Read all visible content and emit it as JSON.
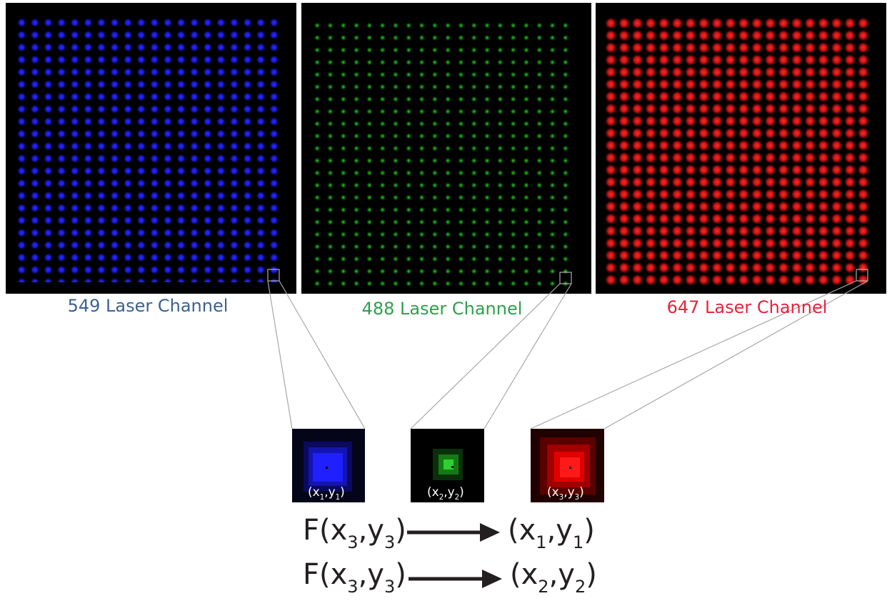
{
  "panels": [
    {
      "label": "549 Laser Channel"
    },
    {
      "label": "488 Laser Channel"
    },
    {
      "label": "647 Laser Channel"
    }
  ],
  "zooms": [
    {
      "open": "(x",
      "sub1": "1",
      "mid": ",y",
      "sub2": "1",
      "close": ")"
    },
    {
      "open": "(x",
      "sub1": "2",
      "mid": ",y",
      "sub2": "2",
      "close": ")"
    },
    {
      "open": "(x",
      "sub1": "3",
      "mid": ",y",
      "sub2": "3",
      "close": ")"
    }
  ],
  "equations": [
    {
      "lhs": {
        "open": "F(x",
        "sub1": "3",
        "mid": ",y",
        "sub2": "3",
        "close": ")"
      },
      "rhs": {
        "open": "(x",
        "sub1": "1",
        "mid": ",y",
        "sub2": "1",
        "close": ")"
      }
    },
    {
      "lhs": {
        "open": "F(x",
        "sub1": "3",
        "mid": ",y",
        "sub2": "3",
        "close": ")"
      },
      "rhs": {
        "open": "(x",
        "sub1": "2",
        "mid": ",y",
        "sub2": "2",
        "close": ")"
      }
    }
  ]
}
